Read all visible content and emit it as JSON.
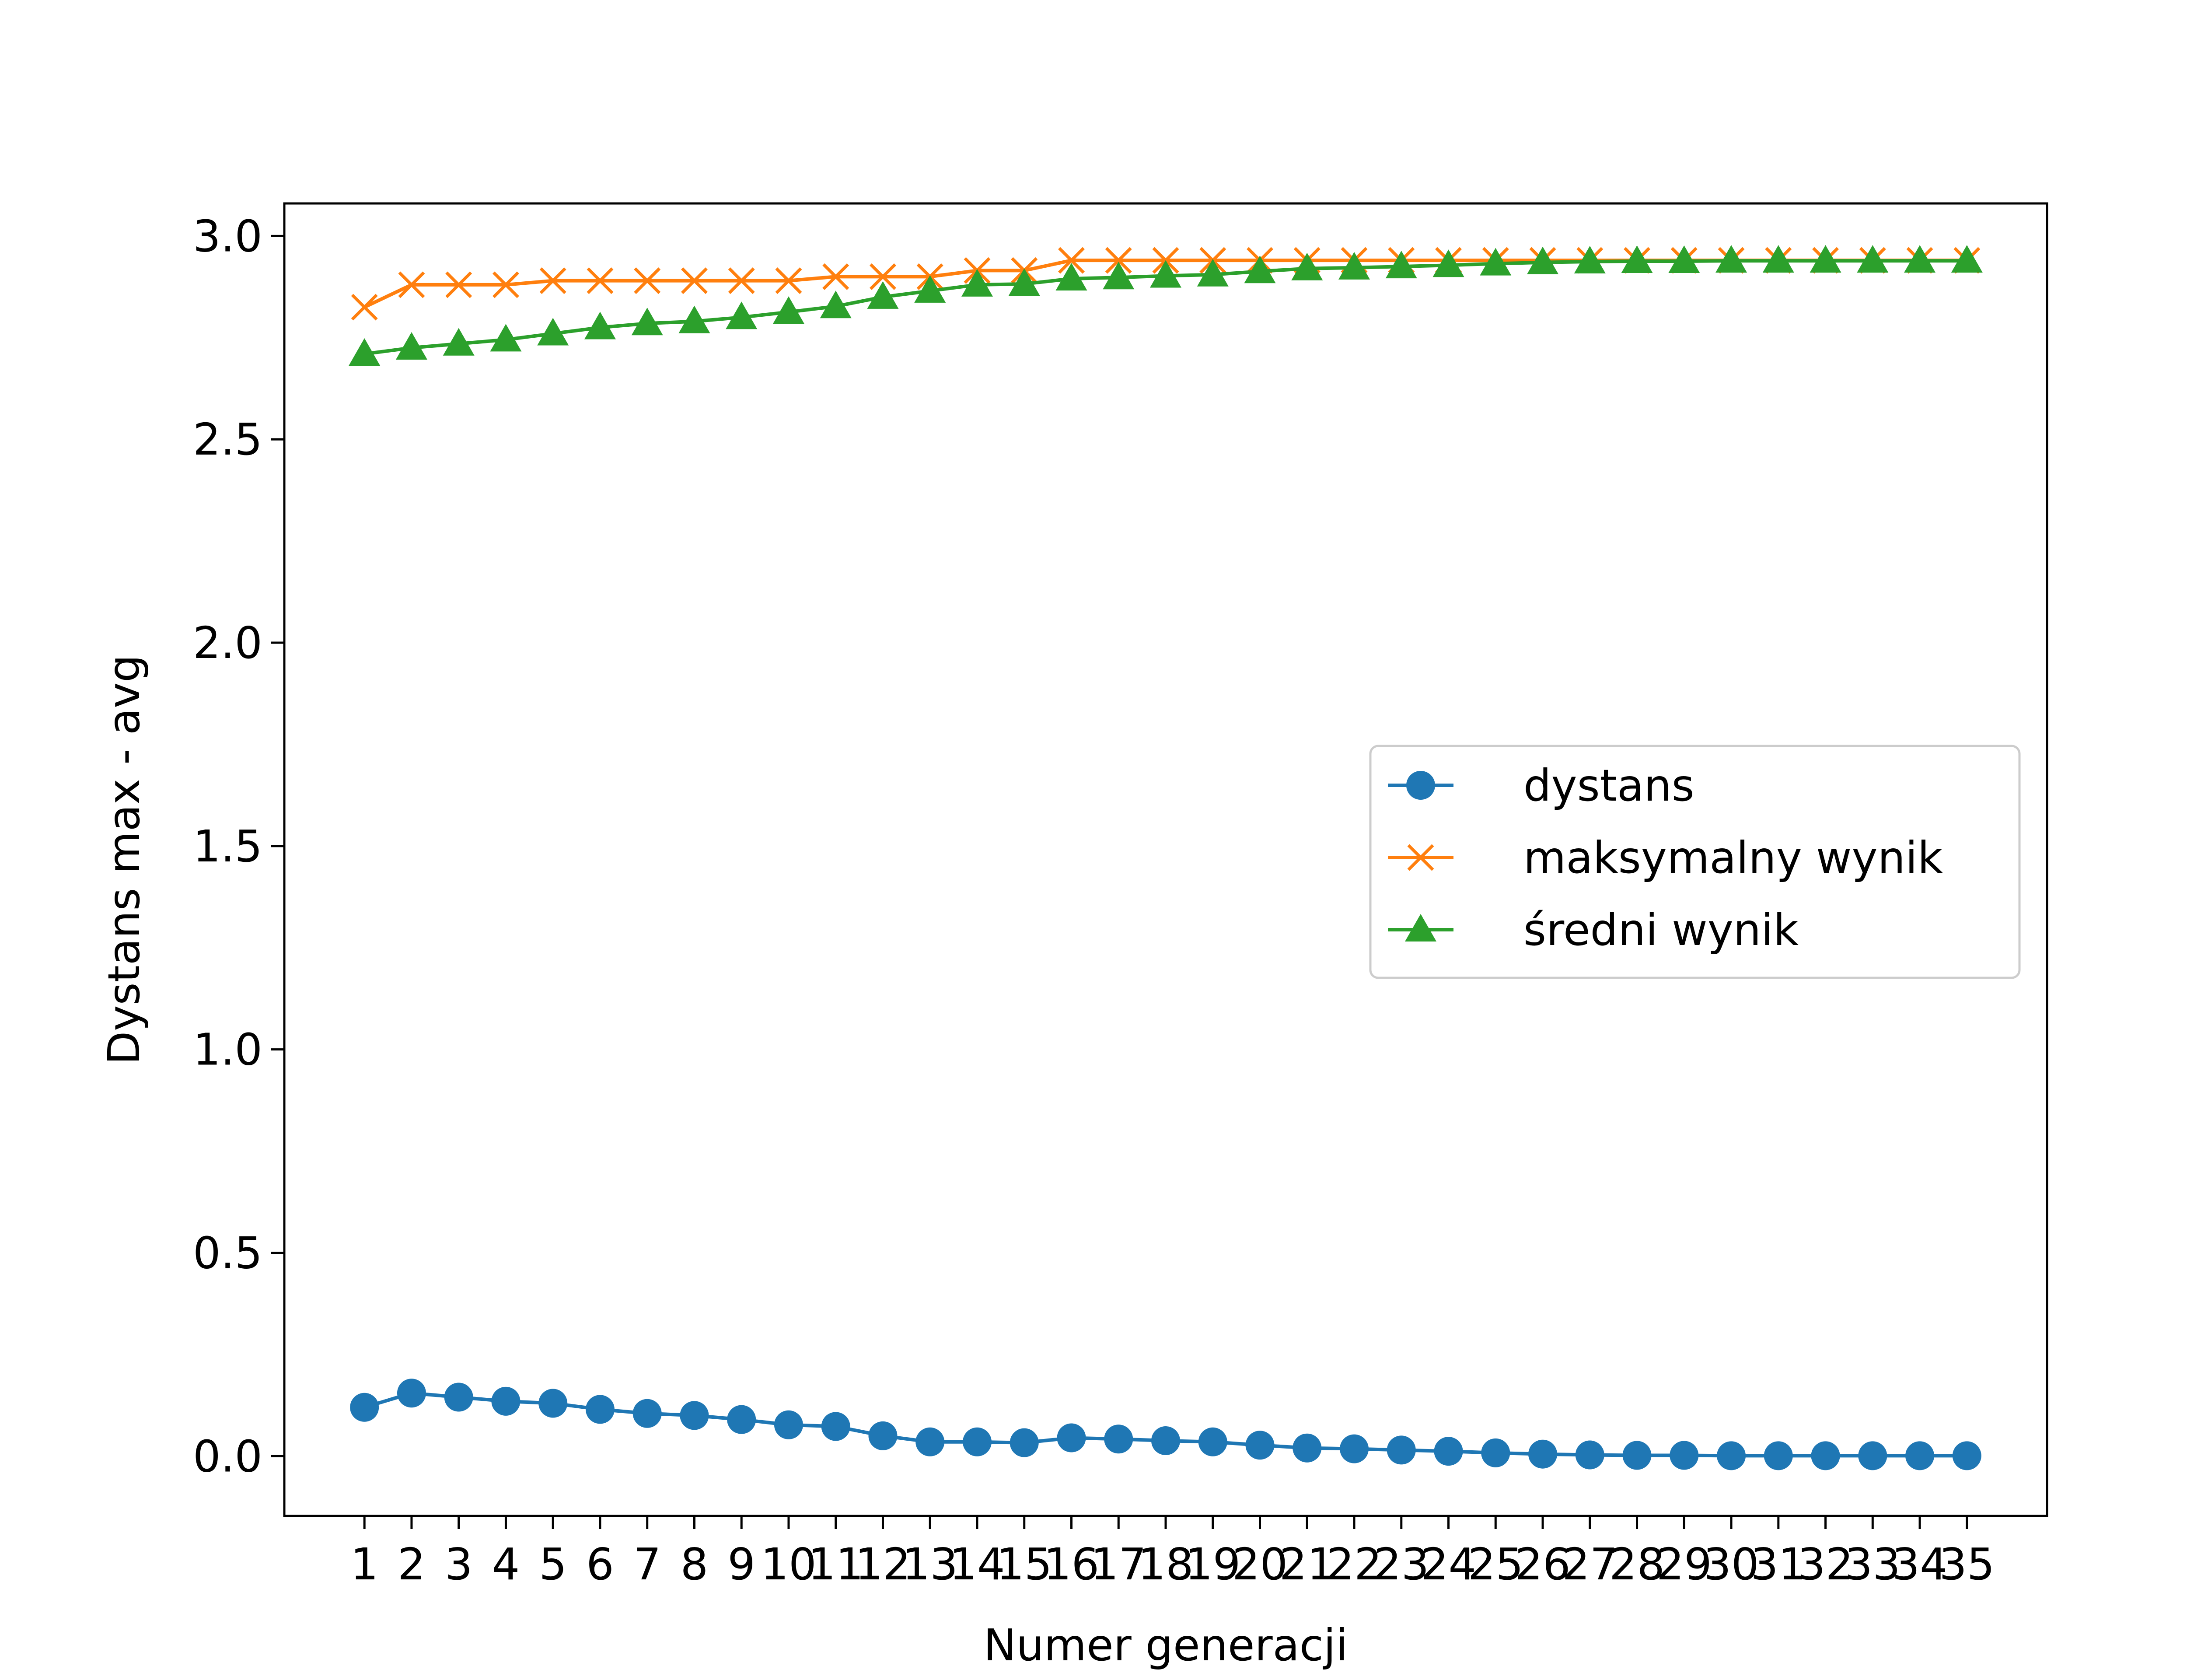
{
  "chart_data": {
    "type": "line",
    "title": "",
    "xlabel": "Numer generacji",
    "ylabel": "Dystans max - avg",
    "x": [
      1,
      2,
      3,
      4,
      5,
      6,
      7,
      8,
      9,
      10,
      11,
      12,
      13,
      14,
      15,
      16,
      17,
      18,
      19,
      20,
      21,
      22,
      23,
      24,
      25,
      26,
      27,
      28,
      29,
      30,
      31,
      32,
      33,
      34,
      35
    ],
    "xlim": [
      -0.7,
      36.7
    ],
    "ylim": [
      -0.147,
      3.08
    ],
    "yticks": [
      0.0,
      0.5,
      1.0,
      1.5,
      2.0,
      2.5,
      3.0
    ],
    "ytick_labels": [
      "0.0",
      "0.5",
      "1.0",
      "1.5",
      "2.0",
      "2.5",
      "3.0"
    ],
    "xtick_labels": [
      "1",
      "2",
      "3",
      "4",
      "5",
      "6",
      "7",
      "8",
      "9",
      "10",
      "11",
      "12",
      "13",
      "14",
      "15",
      "16",
      "17",
      "18",
      "19",
      "20",
      "21",
      "22",
      "23",
      "24",
      "25",
      "26",
      "27",
      "28",
      "29",
      "30",
      "31",
      "32",
      "33",
      "34",
      "35"
    ],
    "grid": false,
    "legend_position": "center-right",
    "series": [
      {
        "name": "dystans",
        "color": "#1f77b4",
        "marker": "circle",
        "values": [
          0.12,
          0.155,
          0.145,
          0.135,
          0.13,
          0.115,
          0.105,
          0.1,
          0.09,
          0.077,
          0.073,
          0.05,
          0.035,
          0.035,
          0.033,
          0.045,
          0.042,
          0.038,
          0.035,
          0.027,
          0.02,
          0.018,
          0.015,
          0.012,
          0.008,
          0.005,
          0.003,
          0.002,
          0.002,
          0.001,
          0.001,
          0.001,
          0.001,
          0.001,
          0.001
        ]
      },
      {
        "name": "maksymalny wynik",
        "color": "#ff7f0e",
        "marker": "x",
        "values": [
          2.825,
          2.88,
          2.88,
          2.88,
          2.89,
          2.89,
          2.89,
          2.89,
          2.89,
          2.89,
          2.9,
          2.9,
          2.9,
          2.915,
          2.915,
          2.94,
          2.94,
          2.94,
          2.94,
          2.94,
          2.94,
          2.94,
          2.94,
          2.94,
          2.94,
          2.94,
          2.94,
          2.94,
          2.94,
          2.94,
          2.94,
          2.94,
          2.94,
          2.94,
          2.94
        ]
      },
      {
        "name": "średni wynik",
        "color": "#2ca02c",
        "marker": "triangle",
        "values": [
          2.71,
          2.725,
          2.735,
          2.745,
          2.76,
          2.775,
          2.785,
          2.79,
          2.8,
          2.813,
          2.827,
          2.85,
          2.865,
          2.88,
          2.882,
          2.895,
          2.898,
          2.902,
          2.905,
          2.913,
          2.92,
          2.922,
          2.925,
          2.928,
          2.932,
          2.935,
          2.937,
          2.938,
          2.938,
          2.939,
          2.939,
          2.939,
          2.939,
          2.939,
          2.939
        ]
      }
    ]
  }
}
